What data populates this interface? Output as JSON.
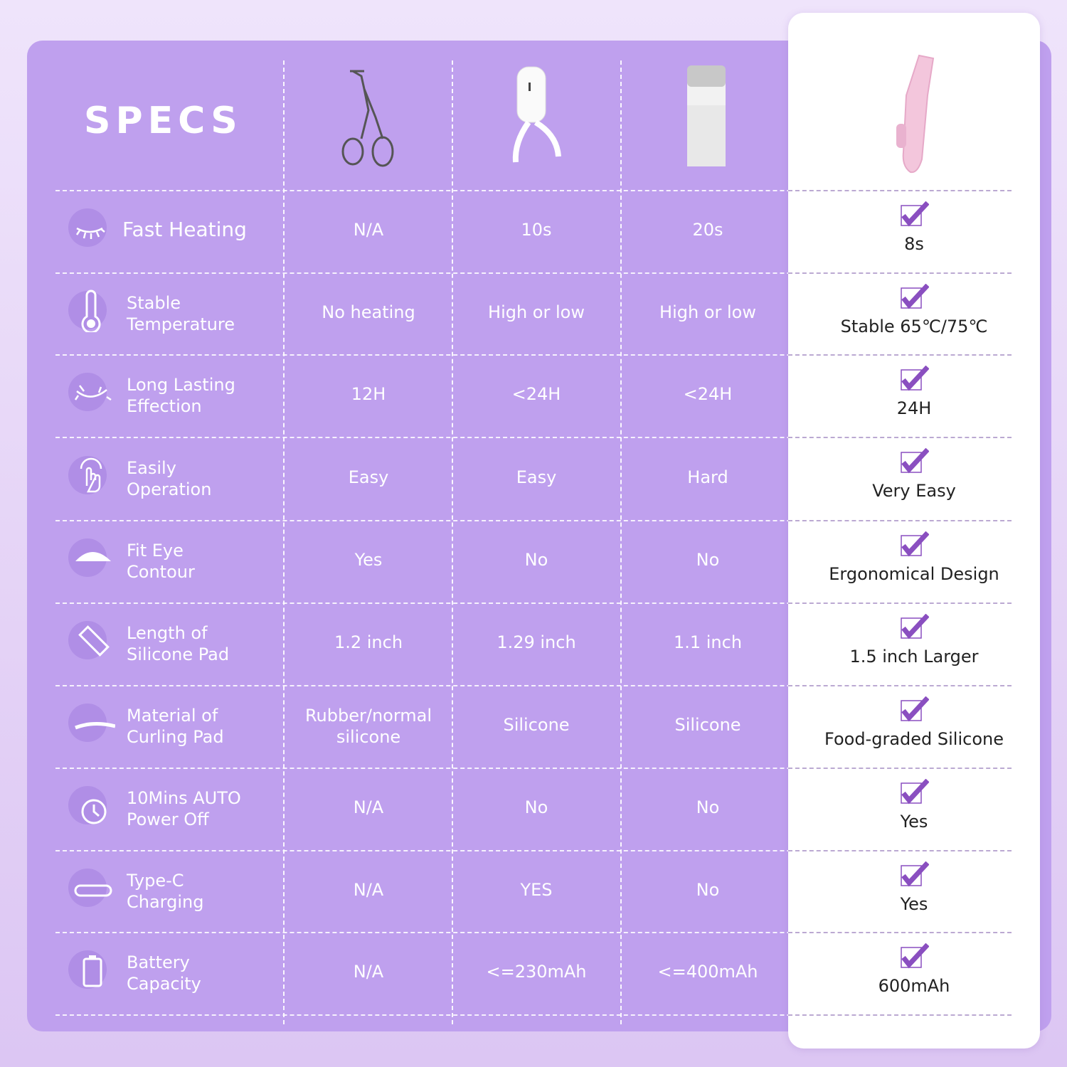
{
  "title": "SPECS",
  "colors": {
    "panel": "#bfa0ee",
    "check": "#8a4fc0",
    "highlight_card": "#ffffff"
  },
  "products": [
    {
      "name": "manual-curler-icon"
    },
    {
      "name": "heated-scissor-curler-icon"
    },
    {
      "name": "heated-stick-curler-icon"
    },
    {
      "name": "pink-heated-curler-icon"
    }
  ],
  "rows": [
    {
      "icon": "closed-eye-lash-icon",
      "label": "Fast Heating",
      "values": [
        "N/A",
        "10s",
        "20s"
      ],
      "best": "8s"
    },
    {
      "icon": "thermometer-icon",
      "label": "Stable Temperature",
      "label_lines": [
        "Stable",
        "Temperature"
      ],
      "values": [
        "No heating",
        "High or low",
        "High or low"
      ],
      "best": "Stable 65℃/75℃"
    },
    {
      "icon": "eyelash-icon",
      "label_lines": [
        "Long Lasting",
        "Effection"
      ],
      "values": [
        "12H",
        "<24H",
        "<24H"
      ],
      "best": "24H"
    },
    {
      "icon": "touch-hand-icon",
      "label_lines": [
        "Easily",
        "Operation"
      ],
      "values": [
        "Easy",
        "Easy",
        "Hard"
      ],
      "best": "Very Easy"
    },
    {
      "icon": "eye-contour-icon",
      "label_lines": [
        "Fit Eye",
        "Contour"
      ],
      "values": [
        "Yes",
        "No",
        "No"
      ],
      "best": "Ergonomical Design"
    },
    {
      "icon": "ruler-icon",
      "label_lines": [
        "Length of",
        "Silicone Pad"
      ],
      "values": [
        "1.2 inch",
        "1.29 inch",
        "1.1 inch"
      ],
      "best": "1.5 inch Larger"
    },
    {
      "icon": "curling-pad-icon",
      "label_lines": [
        "Material of",
        "Curling Pad"
      ],
      "values": [
        "Rubber/normal silicone",
        "Silicone",
        "Silicone"
      ],
      "best": "Food-graded Silicone"
    },
    {
      "icon": "clock-auto-off-icon",
      "label_lines": [
        "10Mins AUTO",
        "Power Off"
      ],
      "values": [
        "N/A",
        "No",
        "No"
      ],
      "best": "Yes"
    },
    {
      "icon": "type-c-port-icon",
      "label_lines": [
        "Type-C",
        "Charging"
      ],
      "values": [
        "N/A",
        "YES",
        "No"
      ],
      "best": "Yes"
    },
    {
      "icon": "battery-icon",
      "label_lines": [
        "Battery",
        "Capacity"
      ],
      "values": [
        "N/A",
        "<=230mAh",
        "<=400mAh"
      ],
      "best": "600mAh"
    }
  ]
}
